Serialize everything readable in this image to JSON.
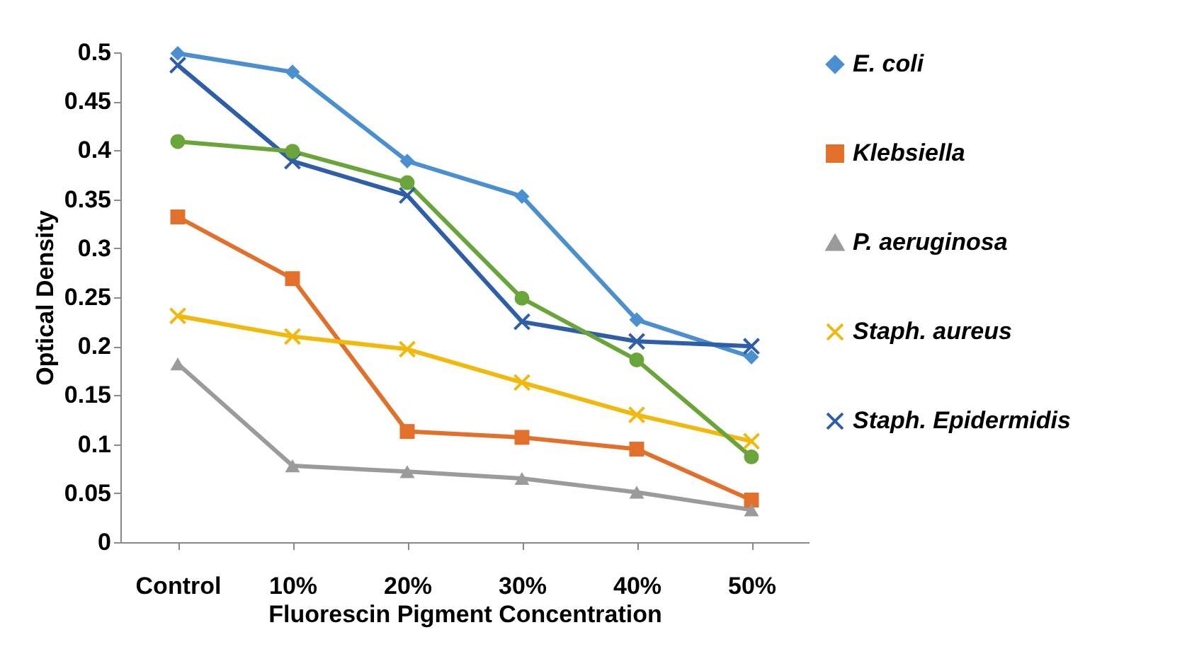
{
  "chart_data": {
    "type": "line",
    "xlabel": "Fluorescin Pigment Concentration",
    "ylabel": "Optical Density",
    "categories": [
      "Control",
      "10%",
      "20%",
      "30%",
      "40%",
      "50%"
    ],
    "ylim": [
      0,
      0.5
    ],
    "yticks": [
      0,
      0.05,
      0.1,
      0.15,
      0.2,
      0.25,
      0.3,
      0.35,
      0.4,
      0.45,
      0.5
    ],
    "grid": false,
    "legend": "right",
    "series": [
      {
        "name": "E. coli",
        "color": "#4a8fd0",
        "marker": "diamond",
        "values": [
          0.499,
          0.48,
          0.389,
          0.353,
          0.227,
          0.189
        ]
      },
      {
        "name": "Klebsiella",
        "color": "#e2702a",
        "marker": "square",
        "values": [
          0.332,
          0.269,
          0.113,
          0.107,
          0.095,
          0.043
        ]
      },
      {
        "name": "P. aeruginosa",
        "color": "#9b9b9b",
        "marker": "triangle",
        "values": [
          0.182,
          0.078,
          0.072,
          0.065,
          0.051,
          0.033
        ]
      },
      {
        "name": "Staph. aureus",
        "color": "#f2b90c",
        "marker": "cross",
        "values": [
          0.231,
          0.21,
          0.197,
          0.163,
          0.13,
          0.103
        ]
      },
      {
        "name": "Staph. Epidermidis",
        "color": "#2f5ea8",
        "marker": "cross",
        "values": [
          0.487,
          0.389,
          0.354,
          0.225,
          0.205,
          0.2
        ]
      },
      {
        "color": "#6aa53a",
        "marker": "circle",
        "values": [
          0.409,
          0.399,
          0.367,
          0.249,
          0.186,
          0.087
        ]
      }
    ]
  }
}
